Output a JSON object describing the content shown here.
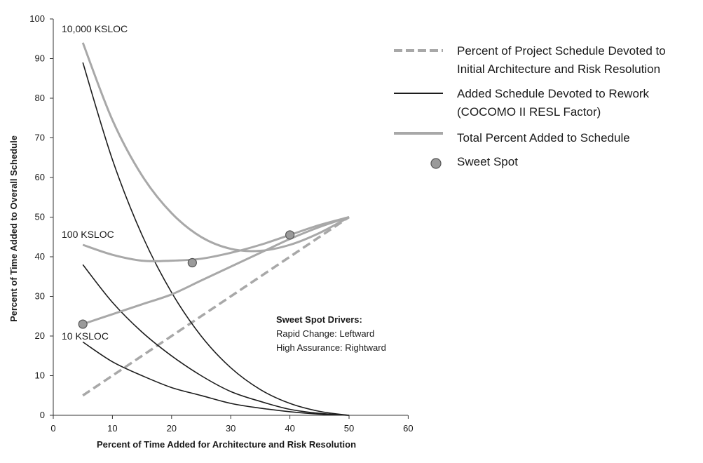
{
  "chart_data": {
    "type": "line",
    "xlabel": "Percent of Time Added for Architecture and Risk Resolution",
    "ylabel": "Percent of Time Added to Overall Schedule",
    "xlim": [
      0,
      60
    ],
    "ylim": [
      0,
      100
    ],
    "xticks": [
      "0",
      "10",
      "20",
      "30",
      "40",
      "50",
      "60"
    ],
    "yticks": [
      "0",
      "10",
      "20",
      "30",
      "40",
      "50",
      "60",
      "70",
      "80",
      "90",
      "100"
    ],
    "grid": false,
    "legend_position": "top-right",
    "legend": [
      {
        "key": "architecture",
        "style": "dashed",
        "label": [
          "Percent of Project Schedule Devoted to",
          "Initial Architecture and Risk Resolution"
        ]
      },
      {
        "key": "rework",
        "style": "solid-dark",
        "label": [
          "Added Schedule Devoted to Rework",
          "(COCOMO II RESL Factor)"
        ]
      },
      {
        "key": "total",
        "style": "solid-gray",
        "label": [
          "Total Percent Added to Schedule"
        ]
      },
      {
        "key": "sweet",
        "style": "marker",
        "label": [
          "Sweet Spot"
        ]
      }
    ],
    "colors": {
      "architecture": "#a8a8a8",
      "rework": "#1c1c1c",
      "total": "#a8a8a8",
      "sweet_fill": "#9a9a9a",
      "sweet_stroke": "#555555"
    },
    "architecture": {
      "x": [
        5,
        50
      ],
      "y": [
        5,
        50
      ]
    },
    "series": [
      {
        "size": "10,000 KSLOC",
        "rework": {
          "x": [
            5,
            10,
            15,
            20,
            25,
            30,
            35,
            40,
            45,
            50
          ],
          "y": [
            89,
            64.5,
            45.5,
            31,
            20,
            12,
            6.5,
            3,
            1,
            0
          ]
        },
        "total": {
          "x": [
            5,
            10,
            15,
            20,
            25,
            30,
            35,
            40,
            45,
            50
          ],
          "y": [
            94,
            74.5,
            60.5,
            51,
            45,
            42,
            41.5,
            43,
            46,
            50
          ]
        },
        "sweet_spot": {
          "x": 40,
          "y": 45.5
        }
      },
      {
        "size": "100 KSLOC",
        "rework": {
          "x": [
            5,
            10,
            15,
            20,
            25,
            30,
            35,
            40,
            45,
            50
          ],
          "y": [
            38,
            28.5,
            21,
            15,
            10,
            6,
            3.5,
            1.5,
            0.5,
            0
          ]
        },
        "total": {
          "x": [
            5,
            10,
            15,
            20,
            25,
            30,
            35,
            40,
            45,
            50
          ],
          "y": [
            43,
            40.5,
            39,
            39,
            39.5,
            41,
            43,
            45.5,
            48,
            50
          ]
        },
        "sweet_spot": {
          "x": 23.5,
          "y": 38.5
        }
      },
      {
        "size": "10 KSLOC",
        "rework": {
          "x": [
            5,
            10,
            15,
            20,
            25,
            30,
            35,
            40,
            45,
            50
          ],
          "y": [
            18.5,
            13.5,
            10,
            7,
            5,
            3,
            1.8,
            0.9,
            0.3,
            0
          ]
        },
        "total": {
          "x": [
            5,
            10,
            15,
            20,
            25,
            30,
            35,
            40,
            45,
            50
          ],
          "y": [
            23,
            25.5,
            28,
            30.5,
            34,
            37.5,
            41,
            44.5,
            47.5,
            50
          ]
        },
        "sweet_spot": {
          "x": 5,
          "y": 23
        }
      }
    ],
    "annotation": {
      "title": "Sweet Spot Drivers:",
      "lines": [
        "Rapid Change: Leftward",
        "High Assurance: Rightward"
      ]
    }
  }
}
